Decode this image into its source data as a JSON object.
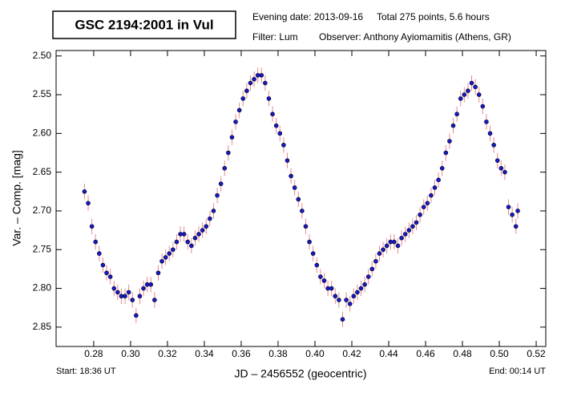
{
  "chart_data": {
    "type": "scatter",
    "title": "GSC 2194:2001 in Vul",
    "evening_date": "Evening date: 2013-09-16",
    "total": "Total 275 points, 5.6 hours",
    "filter": "Filter: Lum",
    "observer": "Observer: Anthony Ayiomamitis (Athens, GR)",
    "x_label": "JD – 2456552  (geocentric)",
    "y_label": "Var. – Comp. [mag]",
    "start": "Start: 18:36 UT",
    "end": "End: 00:14 UT",
    "xlim": [
      0.2596,
      0.5252
    ],
    "ylim": [
      2.493,
      2.875
    ],
    "y_inverted": true,
    "xticks": [
      {
        "value": 0.28,
        "label": "0.28"
      },
      {
        "value": 0.3,
        "label": "0.30"
      },
      {
        "value": 0.32,
        "label": "0.32"
      },
      {
        "value": 0.34,
        "label": "0.34"
      },
      {
        "value": 0.36,
        "label": "0.36"
      },
      {
        "value": 0.38,
        "label": "0.38"
      },
      {
        "value": 0.4,
        "label": "0.40"
      },
      {
        "value": 0.42,
        "label": "0.42"
      },
      {
        "value": 0.44,
        "label": "0.44"
      },
      {
        "value": 0.46,
        "label": "0.46"
      },
      {
        "value": 0.48,
        "label": "0.48"
      },
      {
        "value": 0.5,
        "label": "0.50"
      },
      {
        "value": 0.52,
        "label": "0.52"
      }
    ],
    "yticks": [
      {
        "value": 2.5,
        "label": "2.50"
      },
      2.55,
      {
        "value": 2.6,
        "label": "2.60"
      },
      2.65,
      {
        "value": 2.7,
        "label": "2.70"
      },
      2.75,
      {
        "value": 2.8,
        "label": "2.80"
      },
      2.85
    ],
    "series": [
      {
        "color": "#1a1acc",
        "error_color": "#e88a8a",
        "error": 0.01,
        "x": [
          0.275,
          0.277,
          0.279,
          0.281,
          0.283,
          0.285,
          0.287,
          0.289,
          0.291,
          0.293,
          0.295,
          0.297,
          0.299,
          0.301,
          0.303,
          0.305,
          0.307,
          0.309,
          0.311,
          0.313,
          0.315,
          0.317,
          0.319,
          0.321,
          0.323,
          0.325,
          0.327,
          0.329,
          0.331,
          0.333,
          0.335,
          0.337,
          0.339,
          0.341,
          0.343,
          0.345,
          0.347,
          0.349,
          0.351,
          0.353,
          0.355,
          0.357,
          0.359,
          0.361,
          0.363,
          0.365,
          0.367,
          0.369,
          0.371,
          0.373,
          0.375,
          0.377,
          0.379,
          0.381,
          0.383,
          0.385,
          0.387,
          0.389,
          0.391,
          0.393,
          0.395,
          0.397,
          0.399,
          0.401,
          0.403,
          0.405,
          0.407,
          0.409,
          0.411,
          0.413,
          0.415,
          0.417,
          0.419,
          0.421,
          0.423,
          0.425,
          0.427,
          0.429,
          0.431,
          0.433,
          0.435,
          0.437,
          0.439,
          0.441,
          0.443,
          0.445,
          0.447,
          0.449,
          0.451,
          0.453,
          0.455,
          0.457,
          0.459,
          0.461,
          0.463,
          0.465,
          0.467,
          0.469,
          0.471,
          0.473,
          0.475,
          0.477,
          0.479,
          0.481,
          0.483,
          0.485,
          0.487,
          0.489,
          0.491,
          0.493,
          0.495,
          0.497,
          0.499,
          0.501,
          0.503,
          0.505,
          0.507,
          0.509,
          0.51
        ],
        "values": [
          2.675,
          2.69,
          2.72,
          2.74,
          2.755,
          2.77,
          2.78,
          2.785,
          2.8,
          2.805,
          2.81,
          2.81,
          2.805,
          2.815,
          2.835,
          2.81,
          2.8,
          2.795,
          2.795,
          2.815,
          2.78,
          2.765,
          2.76,
          2.755,
          2.75,
          2.74,
          2.73,
          2.73,
          2.74,
          2.745,
          2.735,
          2.73,
          2.725,
          2.72,
          2.71,
          2.7,
          2.68,
          2.665,
          2.645,
          2.625,
          2.605,
          2.585,
          2.57,
          2.555,
          2.545,
          2.535,
          2.53,
          2.525,
          2.525,
          2.535,
          2.555,
          2.575,
          2.59,
          2.6,
          2.615,
          2.635,
          2.655,
          2.67,
          2.685,
          2.7,
          2.72,
          2.74,
          2.755,
          2.77,
          2.785,
          2.79,
          2.8,
          2.8,
          2.81,
          2.815,
          2.84,
          2.815,
          2.82,
          2.81,
          2.805,
          2.8,
          2.795,
          2.785,
          2.775,
          2.765,
          2.755,
          2.75,
          2.745,
          2.74,
          2.74,
          2.745,
          2.735,
          2.73,
          2.725,
          2.72,
          2.715,
          2.705,
          2.695,
          2.69,
          2.68,
          2.67,
          2.66,
          2.645,
          2.625,
          2.61,
          2.59,
          2.575,
          2.555,
          2.55,
          2.545,
          2.535,
          2.54,
          2.55,
          2.565,
          2.585,
          2.6,
          2.615,
          2.635,
          2.645,
          2.65,
          2.695,
          2.705,
          2.72,
          2.7
        ]
      }
    ]
  }
}
